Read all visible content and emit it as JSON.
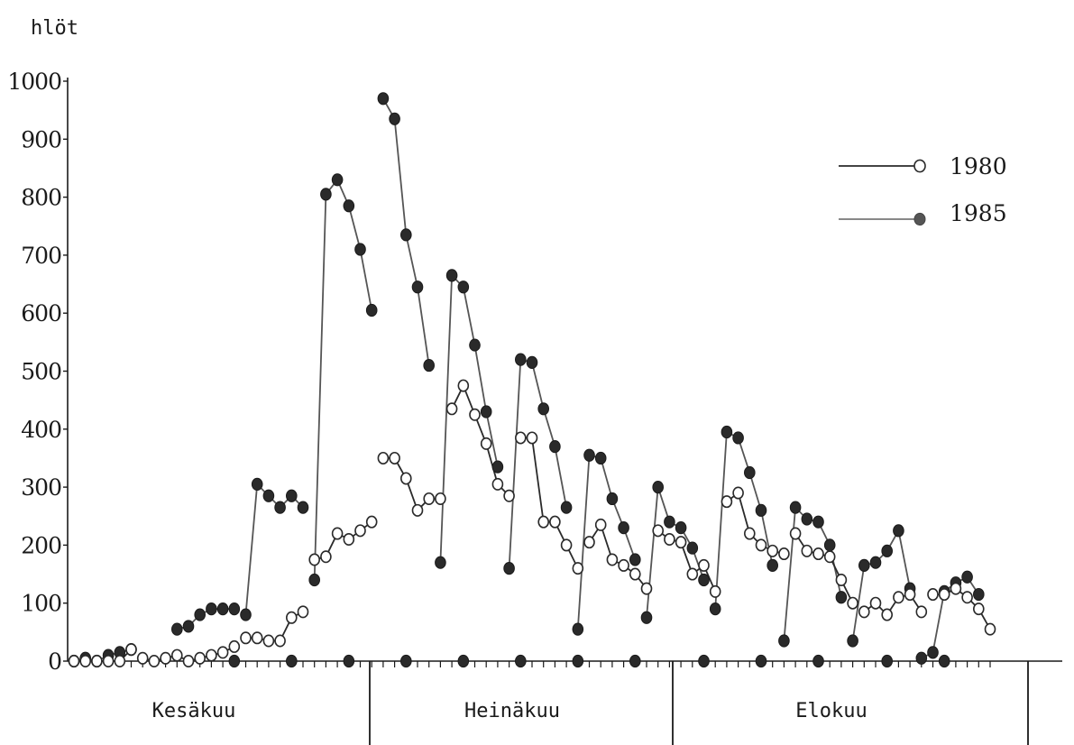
{
  "chart_data": {
    "type": "line",
    "ylabel": "hlöt",
    "ylim": [
      0,
      1000
    ],
    "yticks": [
      0,
      100,
      200,
      300,
      400,
      500,
      600,
      700,
      800,
      900,
      1000
    ],
    "ytick_labels": [
      "0",
      "100",
      "200",
      "300",
      "400",
      "500",
      "600",
      "700",
      "800",
      "900",
      "1000"
    ],
    "months": [
      "Kesäkuu",
      "Heinäkuu",
      "Elokuu"
    ],
    "legend": {
      "position": "top-right"
    },
    "series": [
      {
        "name": "1980",
        "marker": "open-circle",
        "color": "#2a2a2a",
        "segments": [
          [
            [
              0,
              0
            ],
            [
              1,
              0
            ],
            [
              2,
              0
            ],
            [
              3,
              0
            ],
            [
              4,
              0
            ],
            [
              5,
              20
            ]
          ],
          [
            [
              6,
              5
            ],
            [
              7,
              0
            ],
            [
              8,
              5
            ],
            [
              9,
              10
            ],
            [
              10,
              0
            ],
            [
              11,
              5
            ],
            [
              12,
              10
            ],
            [
              13,
              15
            ],
            [
              14,
              25
            ]
          ],
          [
            [
              15,
              40
            ],
            [
              16,
              40
            ],
            [
              17,
              35
            ],
            [
              18,
              35
            ],
            [
              19,
              75
            ],
            [
              20,
              85
            ]
          ],
          [
            [
              21,
              175
            ],
            [
              22,
              180
            ],
            [
              23,
              220
            ],
            [
              24,
              210
            ],
            [
              25,
              225
            ],
            [
              26,
              240
            ]
          ],
          [
            [
              27,
              350
            ],
            [
              28,
              350
            ],
            [
              29,
              315
            ],
            [
              30,
              260
            ],
            [
              31,
              280
            ],
            [
              32,
              280
            ]
          ],
          [
            [
              33,
              435
            ],
            [
              34,
              475
            ],
            [
              35,
              425
            ],
            [
              36,
              375
            ],
            [
              37,
              305
            ],
            [
              38,
              285
            ]
          ],
          [
            [
              39,
              385
            ],
            [
              40,
              385
            ],
            [
              41,
              240
            ],
            [
              42,
              240
            ],
            [
              43,
              200
            ],
            [
              44,
              160
            ]
          ],
          [
            [
              45,
              205
            ],
            [
              46,
              235
            ],
            [
              47,
              175
            ],
            [
              48,
              165
            ],
            [
              49,
              150
            ],
            [
              50,
              125
            ]
          ],
          [
            [
              51,
              225
            ],
            [
              52,
              210
            ],
            [
              53,
              205
            ],
            [
              54,
              150
            ],
            [
              55,
              165
            ],
            [
              56,
              120
            ]
          ],
          [
            [
              57,
              275
            ],
            [
              58,
              290
            ],
            [
              59,
              220
            ],
            [
              60,
              200
            ],
            [
              61,
              190
            ],
            [
              62,
              185
            ]
          ],
          [
            [
              63,
              220
            ],
            [
              64,
              190
            ],
            [
              65,
              185
            ],
            [
              66,
              180
            ],
            [
              67,
              140
            ],
            [
              68,
              100
            ]
          ],
          [
            [
              69,
              85
            ],
            [
              70,
              100
            ],
            [
              71,
              80
            ],
            [
              72,
              110
            ],
            [
              73,
              115
            ],
            [
              74,
              85
            ]
          ],
          [
            [
              75,
              115
            ],
            [
              76,
              115
            ],
            [
              77,
              125
            ],
            [
              78,
              110
            ],
            [
              79,
              90
            ],
            [
              80,
              55
            ]
          ]
        ]
      },
      {
        "name": "1985",
        "marker": "filled-circle",
        "color": "#555555",
        "segments": [
          [
            [
              0,
              0
            ],
            [
              1,
              5
            ],
            [
              2,
              0
            ],
            [
              3,
              10
            ],
            [
              4,
              15
            ],
            [
              5,
              20
            ]
          ],
          [
            [
              9,
              55
            ],
            [
              10,
              60
            ],
            [
              11,
              80
            ],
            [
              12,
              90
            ],
            [
              13,
              90
            ],
            [
              14,
              90
            ]
          ],
          [
            [
              15,
              80
            ],
            [
              16,
              305
            ],
            [
              17,
              285
            ],
            [
              18,
              265
            ],
            [
              19,
              285
            ],
            [
              20,
              265
            ]
          ],
          [
            [
              21,
              140
            ],
            [
              22,
              805
            ],
            [
              23,
              830
            ],
            [
              24,
              785
            ],
            [
              25,
              710
            ],
            [
              26,
              605
            ]
          ],
          [
            [
              27,
              970
            ],
            [
              28,
              935
            ],
            [
              29,
              735
            ],
            [
              30,
              645
            ],
            [
              31,
              510
            ]
          ],
          [
            [
              32,
              170
            ],
            [
              33,
              665
            ],
            [
              34,
              645
            ],
            [
              35,
              545
            ],
            [
              36,
              430
            ],
            [
              37,
              335
            ]
          ],
          [
            [
              38,
              160
            ],
            [
              39,
              520
            ],
            [
              40,
              515
            ],
            [
              41,
              435
            ],
            [
              42,
              370
            ],
            [
              43,
              265
            ]
          ],
          [
            [
              44,
              55
            ],
            [
              45,
              355
            ],
            [
              46,
              350
            ],
            [
              47,
              280
            ],
            [
              48,
              230
            ],
            [
              49,
              175
            ]
          ],
          [
            [
              50,
              75
            ],
            [
              51,
              300
            ],
            [
              52,
              240
            ],
            [
              53,
              230
            ],
            [
              54,
              195
            ],
            [
              55,
              140
            ]
          ],
          [
            [
              56,
              90
            ],
            [
              57,
              395
            ],
            [
              58,
              385
            ],
            [
              59,
              325
            ],
            [
              60,
              260
            ],
            [
              61,
              165
            ]
          ],
          [
            [
              62,
              35
            ],
            [
              63,
              265
            ],
            [
              64,
              245
            ],
            [
              65,
              240
            ],
            [
              66,
              200
            ],
            [
              67,
              110
            ]
          ],
          [
            [
              68,
              35
            ],
            [
              69,
              165
            ],
            [
              70,
              170
            ],
            [
              71,
              190
            ],
            [
              72,
              225
            ],
            [
              73,
              125
            ]
          ],
          [
            [
              74,
              5
            ],
            [
              75,
              15
            ],
            [
              76,
              120
            ],
            [
              77,
              135
            ],
            [
              78,
              145
            ],
            [
              79,
              115
            ]
          ]
        ],
        "zero_points": [
          14,
          19,
          24,
          29,
          34,
          39,
          44,
          49,
          55,
          60,
          65,
          71,
          76
        ]
      }
    ]
  }
}
